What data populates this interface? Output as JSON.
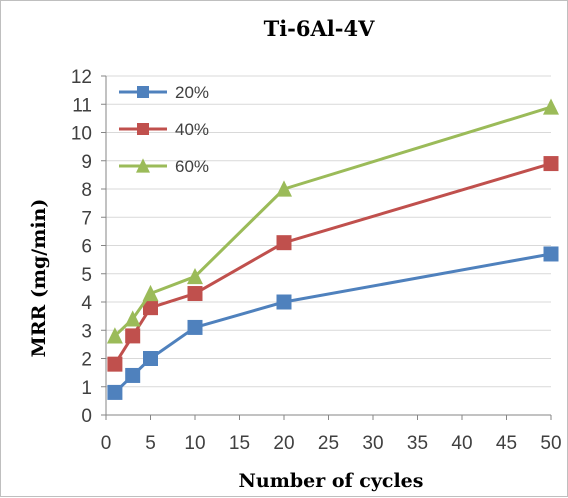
{
  "chart_data": {
    "type": "line",
    "title": "Ti-6Al-4V",
    "xlabel": "Number of cycles",
    "ylabel": "MRR (mg/min)",
    "xlim": [
      0,
      50
    ],
    "ylim": [
      0,
      12
    ],
    "xticks": [
      0,
      5,
      10,
      15,
      20,
      25,
      30,
      35,
      40,
      45,
      50
    ],
    "yticks": [
      0,
      1,
      2,
      3,
      4,
      5,
      6,
      7,
      8,
      9,
      10,
      11,
      12
    ],
    "grid": true,
    "legend_position": "top-left",
    "x": [
      1,
      3,
      5,
      10,
      20,
      50
    ],
    "series": [
      {
        "name": "20%",
        "values": [
          0.8,
          1.4,
          2.0,
          3.1,
          4.0,
          5.7
        ],
        "color": "#4f81bd",
        "marker": "square"
      },
      {
        "name": "40%",
        "values": [
          1.8,
          2.8,
          3.8,
          4.3,
          6.1,
          8.9
        ],
        "color": "#c0504d",
        "marker": "square"
      },
      {
        "name": "60%",
        "values": [
          2.8,
          3.4,
          4.3,
          4.9,
          8.0,
          10.9
        ],
        "color": "#9bbb59",
        "marker": "triangle"
      }
    ]
  }
}
